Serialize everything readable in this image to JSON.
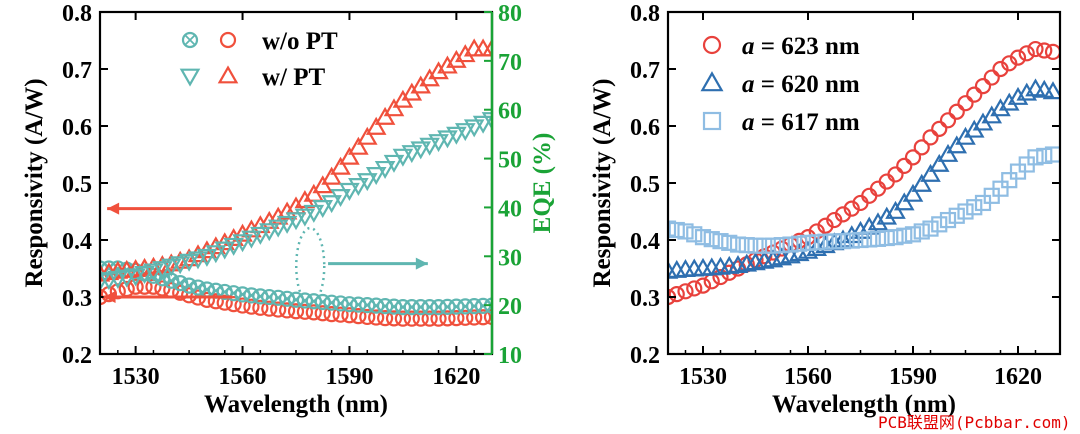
{
  "chart_data": [
    {
      "type": "scatter",
      "xlabel": "Wavelength (nm)",
      "ylabel": "Responsivity (A/W)",
      "y2label": "EQE (%)",
      "xlim": [
        1520,
        1630
      ],
      "ylim": [
        0.2,
        0.8
      ],
      "y2lim": [
        10,
        80
      ],
      "xticks": [
        "1530",
        "1560",
        "1590",
        "1620"
      ],
      "yticks": [
        "0.2",
        "0.3",
        "0.4",
        "0.5",
        "0.6",
        "0.7",
        "0.8"
      ],
      "y2ticks": [
        "10",
        "20",
        "30",
        "40",
        "50",
        "60",
        "70",
        "80"
      ],
      "legend": [
        {
          "label": "w/o PT"
        },
        {
          "label": "w/ PT"
        }
      ],
      "series": [
        {
          "name": "w/o PT Responsivity",
          "axis": "left",
          "marker": "circle",
          "color": "#f0503c",
          "x": [
            1520,
            1525,
            1530,
            1535,
            1540,
            1545,
            1550,
            1555,
            1560,
            1565,
            1570,
            1575,
            1580,
            1585,
            1590,
            1595,
            1600,
            1605,
            1610,
            1615,
            1620,
            1625,
            1630
          ],
          "y": [
            0.3,
            0.31,
            0.318,
            0.318,
            0.312,
            0.303,
            0.295,
            0.29,
            0.285,
            0.281,
            0.278,
            0.275,
            0.273,
            0.27,
            0.268,
            0.265,
            0.263,
            0.262,
            0.262,
            0.262,
            0.263,
            0.264,
            0.265
          ]
        },
        {
          "name": "w/o PT EQE",
          "axis": "right",
          "marker": "circle-x",
          "color": "#5fb6b1",
          "x": [
            1520,
            1525,
            1530,
            1535,
            1540,
            1545,
            1550,
            1555,
            1560,
            1565,
            1570,
            1575,
            1580,
            1585,
            1590,
            1595,
            1600,
            1605,
            1610,
            1615,
            1620,
            1625,
            1630
          ],
          "y": [
            27.5,
            27.5,
            27.0,
            26.0,
            25.0,
            24.0,
            23.2,
            22.7,
            22.2,
            21.8,
            21.5,
            21.1,
            20.8,
            20.5,
            20.2,
            20.0,
            19.8,
            19.6,
            19.6,
            19.6,
            19.7,
            19.8,
            19.9
          ]
        },
        {
          "name": "w/ PT Responsivity",
          "axis": "left",
          "marker": "triangle-up",
          "color": "#f0503c",
          "x": [
            1520,
            1525,
            1530,
            1535,
            1540,
            1545,
            1550,
            1555,
            1560,
            1565,
            1570,
            1575,
            1580,
            1585,
            1590,
            1595,
            1600,
            1605,
            1610,
            1615,
            1620,
            1625,
            1630
          ],
          "y": [
            0.34,
            0.345,
            0.348,
            0.352,
            0.358,
            0.367,
            0.381,
            0.395,
            0.41,
            0.425,
            0.44,
            0.458,
            0.48,
            0.51,
            0.545,
            0.58,
            0.615,
            0.645,
            0.67,
            0.695,
            0.715,
            0.735,
            0.735
          ]
        },
        {
          "name": "w/ PT EQE",
          "axis": "right",
          "marker": "triangle-down",
          "color": "#5fb6b1",
          "x": [
            1520,
            1525,
            1530,
            1535,
            1540,
            1545,
            1550,
            1555,
            1560,
            1565,
            1570,
            1575,
            1580,
            1585,
            1590,
            1595,
            1600,
            1605,
            1610,
            1615,
            1620,
            1625,
            1630
          ],
          "y": [
            25.0,
            25.5,
            26.0,
            27.0,
            28.0,
            29.0,
            30.0,
            31.5,
            33.0,
            34.5,
            36.0,
            37.5,
            39.0,
            41.0,
            43.5,
            45.5,
            48.0,
            50.5,
            52.0,
            53.5,
            55.0,
            56.5,
            58.0
          ]
        }
      ],
      "annotations": [
        {
          "type": "arrow",
          "direction": "left",
          "color": "#f0503c",
          "axis": "left"
        },
        {
          "type": "arrow",
          "direction": "left",
          "color": "#f0503c",
          "axis": "left"
        },
        {
          "type": "arrow",
          "direction": "right",
          "color": "#5fb6b1",
          "axis": "right"
        }
      ]
    },
    {
      "type": "scatter",
      "xlabel": "Wavelength (nm)",
      "ylabel": "Responsivity (A/W)",
      "xlim": [
        1520,
        1632
      ],
      "ylim": [
        0.2,
        0.8
      ],
      "xticks": [
        "1530",
        "1560",
        "1590",
        "1620"
      ],
      "yticks": [
        "0.2",
        "0.3",
        "0.4",
        "0.5",
        "0.6",
        "0.7",
        "0.8"
      ],
      "legend": [
        {
          "prefix": "a",
          "label": " = 623 nm"
        },
        {
          "prefix": "a",
          "label": " = 620 nm"
        },
        {
          "prefix": "a",
          "label": " = 617 nm"
        }
      ],
      "series": [
        {
          "name": "a = 623 nm",
          "marker": "circle",
          "color": "#e8413c",
          "x": [
            1520,
            1525,
            1530,
            1535,
            1540,
            1545,
            1550,
            1555,
            1560,
            1565,
            1570,
            1575,
            1580,
            1585,
            1590,
            1595,
            1600,
            1605,
            1610,
            1615,
            1620,
            1625,
            1630
          ],
          "y": [
            0.3,
            0.31,
            0.32,
            0.335,
            0.35,
            0.365,
            0.378,
            0.392,
            0.405,
            0.425,
            0.445,
            0.465,
            0.49,
            0.515,
            0.545,
            0.58,
            0.61,
            0.64,
            0.67,
            0.7,
            0.72,
            0.735,
            0.73
          ]
        },
        {
          "name": "a = 620 nm",
          "marker": "triangle-up",
          "color": "#2e6fb0",
          "x": [
            1520,
            1525,
            1530,
            1535,
            1540,
            1545,
            1550,
            1555,
            1560,
            1565,
            1570,
            1575,
            1580,
            1585,
            1590,
            1595,
            1600,
            1605,
            1610,
            1615,
            1620,
            1625,
            1630
          ],
          "y": [
            0.345,
            0.348,
            0.35,
            0.352,
            0.355,
            0.36,
            0.365,
            0.372,
            0.38,
            0.39,
            0.4,
            0.415,
            0.43,
            0.45,
            0.48,
            0.515,
            0.55,
            0.58,
            0.605,
            0.63,
            0.65,
            0.665,
            0.66
          ]
        },
        {
          "name": "a = 617 nm",
          "marker": "square",
          "color": "#8fbde3",
          "x": [
            1520,
            1525,
            1530,
            1535,
            1540,
            1545,
            1550,
            1555,
            1560,
            1565,
            1570,
            1575,
            1580,
            1585,
            1590,
            1595,
            1600,
            1605,
            1610,
            1615,
            1620,
            1625,
            1630
          ],
          "y": [
            0.42,
            0.415,
            0.405,
            0.398,
            0.392,
            0.39,
            0.39,
            0.392,
            0.395,
            0.397,
            0.398,
            0.4,
            0.402,
            0.405,
            0.41,
            0.42,
            0.435,
            0.45,
            0.465,
            0.49,
            0.52,
            0.545,
            0.55
          ]
        }
      ]
    }
  ],
  "watermark": "PCB联盟网(Pcbbar.com)",
  "colors": {
    "eqe_axis": "#1aa336",
    "wo_pt": "#f0503c",
    "w_pt_eqe": "#5fb6b1",
    "watermark": "#e00000"
  }
}
